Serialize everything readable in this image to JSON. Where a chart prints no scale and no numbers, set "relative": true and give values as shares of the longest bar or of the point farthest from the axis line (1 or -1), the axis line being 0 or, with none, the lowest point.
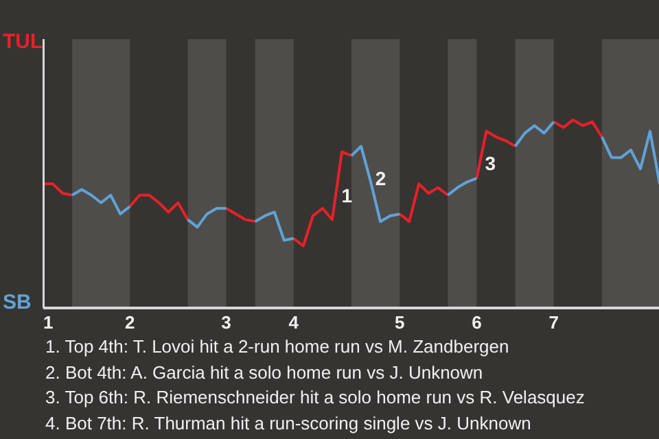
{
  "chart_data": {
    "type": "line",
    "relative": true,
    "categories": [
      "1",
      null,
      null,
      null,
      null,
      null,
      null,
      null,
      null,
      "2",
      null,
      null,
      null,
      null,
      null,
      null,
      null,
      null,
      null,
      "3",
      null,
      null,
      null,
      null,
      null,
      null,
      "4",
      null,
      null,
      null,
      null,
      null,
      null,
      null,
      null,
      null,
      null,
      "5",
      null,
      null,
      null,
      null,
      null,
      null,
      null,
      "6",
      null,
      null,
      null,
      null,
      null,
      null,
      null,
      "7",
      null,
      null,
      null,
      null,
      null,
      null,
      null,
      null,
      null,
      null,
      null
    ],
    "series": [
      {
        "color": "#e8202a",
        "values": [
          0.66,
          0.66,
          0.61,
          0.6,
          null,
          null,
          null,
          null,
          null,
          0.54,
          0.6,
          0.6,
          0.56,
          0.51,
          0.56,
          0.47,
          null,
          null,
          null,
          0.53,
          0.5,
          0.47,
          0.46,
          null,
          null,
          null,
          0.37,
          0.33,
          0.49,
          0.53,
          0.47,
          0.83,
          0.81,
          null,
          null,
          null,
          null,
          0.5,
          0.46,
          0.66,
          0.61,
          0.64,
          0.6,
          null,
          null,
          0.69,
          0.94,
          0.91,
          0.89,
          0.86,
          null,
          null,
          null,
          0.99,
          0.96,
          1,
          0.97,
          0.99,
          0.91,
          null,
          null,
          null,
          null,
          null,
          null
        ]
      },
      {
        "color": "#5fa3d8",
        "values": [
          null,
          null,
          null,
          0.6,
          0.63,
          0.6,
          0.56,
          0.6,
          0.5,
          0.54,
          null,
          null,
          null,
          null,
          null,
          0.47,
          0.43,
          0.5,
          0.53,
          0.53,
          null,
          null,
          0.46,
          0.49,
          0.51,
          0.36,
          0.37,
          null,
          null,
          null,
          null,
          null,
          0.81,
          0.86,
          0.67,
          0.46,
          0.49,
          0.5,
          null,
          null,
          null,
          null,
          0.6,
          0.64,
          0.67,
          0.69,
          null,
          null,
          null,
          0.86,
          0.93,
          0.97,
          0.93,
          0.99,
          null,
          null,
          null,
          null,
          0.91,
          0.8,
          0.8,
          0.84,
          0.74,
          0.94,
          0.66
        ]
      }
    ],
    "annotations": [
      "TUL",
      "SB",
      "1",
      "2",
      "3",
      "1. Top 4th: T. Lovoi hit a 2-run home run vs M. Zandbergen",
      "2. Bot 4th: A. Garcia hit a solo home run vs J. Unknown",
      "3. Top 6th: R. Riemenschneider hit a solo home run vs R. Velasquez",
      "4. Bot 7th: R. Thurman hit a run-scoring single vs J. Unknown"
    ]
  }
}
